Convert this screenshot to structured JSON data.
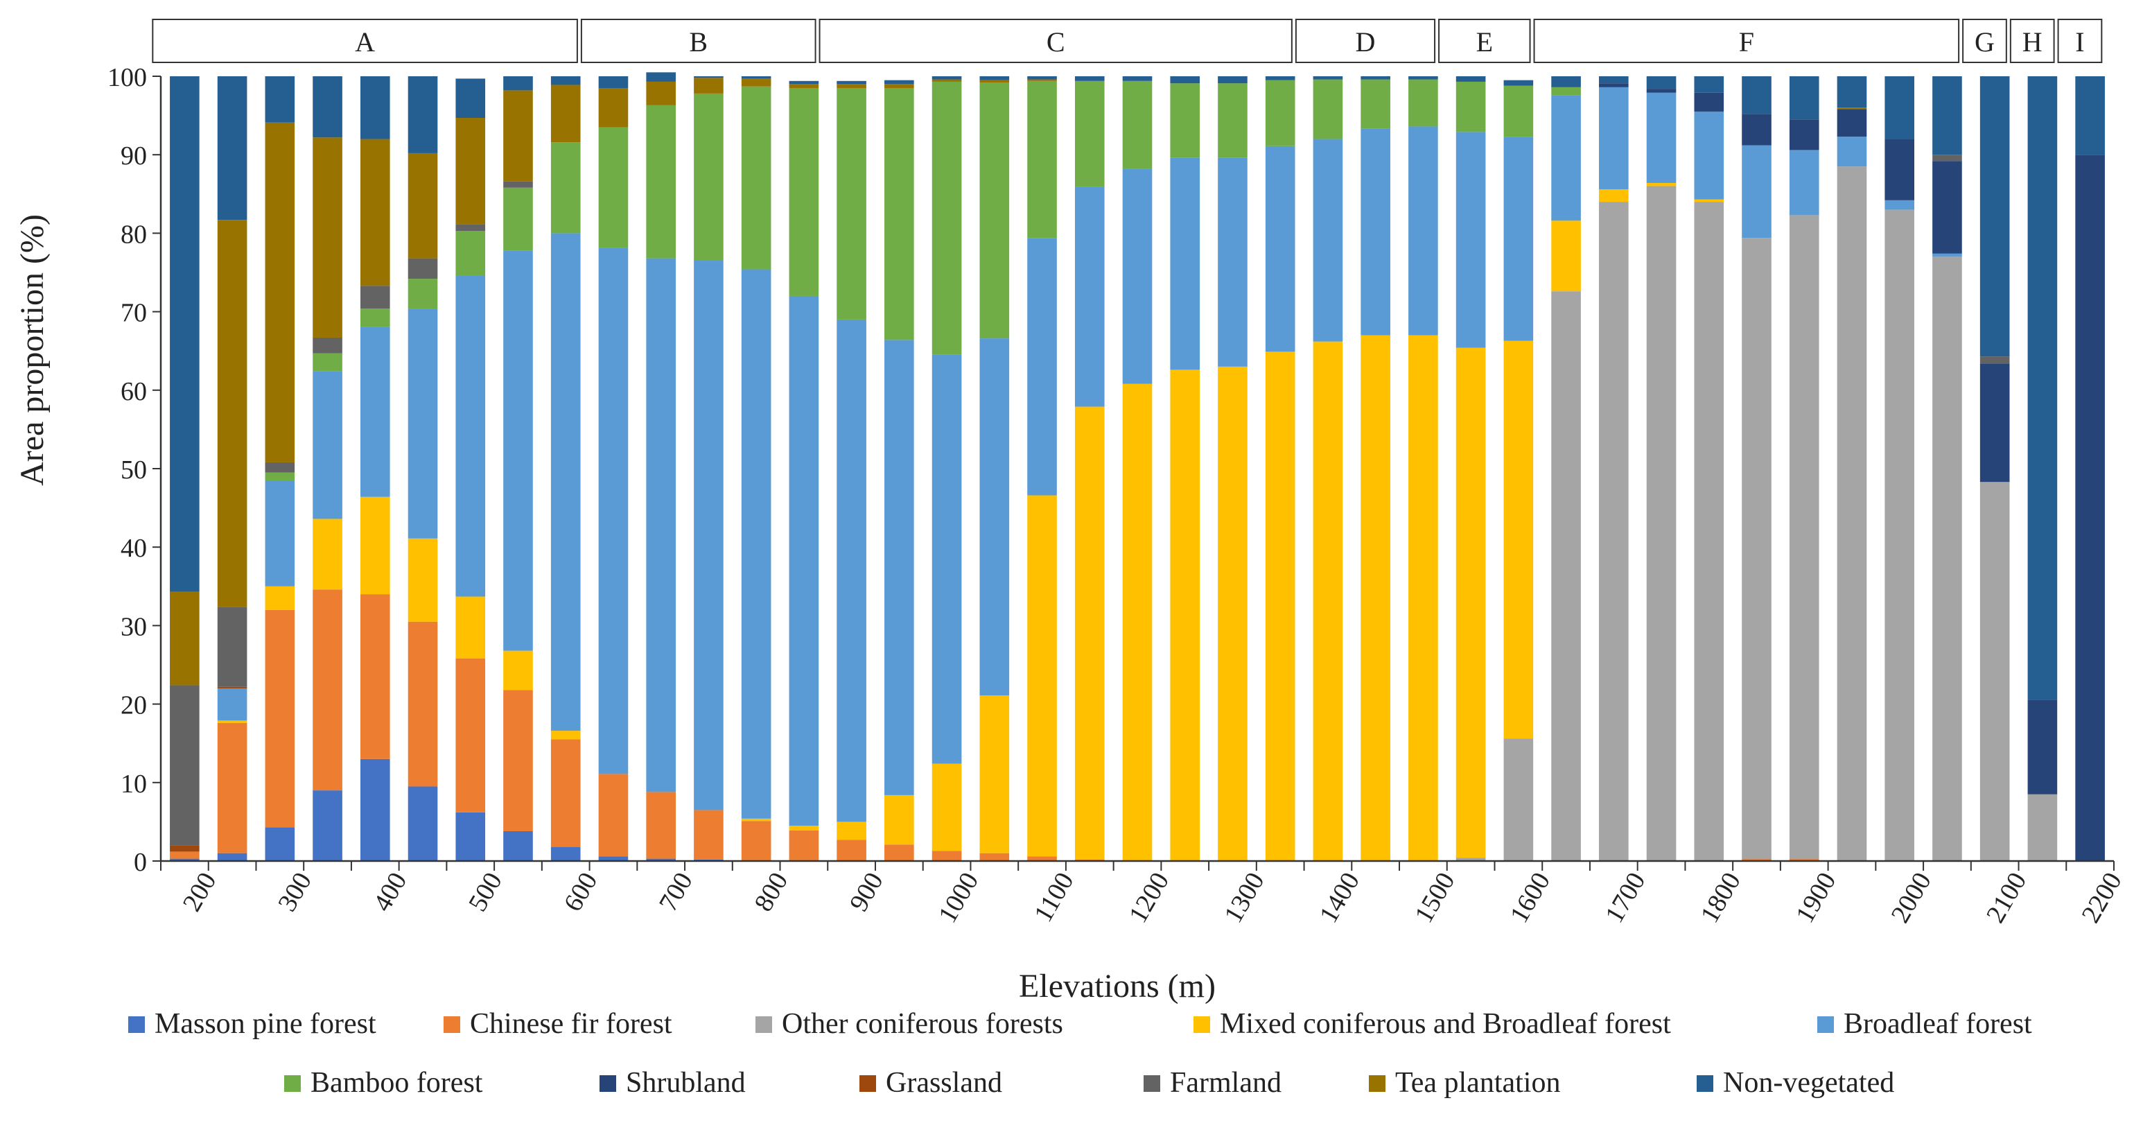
{
  "chart_data": {
    "type": "stacked-bar",
    "xlabel": "Elevations (m)",
    "ylabel": "Area proportion (%)",
    "ylim": [
      0,
      100
    ],
    "yticks": [
      0,
      10,
      20,
      30,
      40,
      50,
      60,
      70,
      80,
      90,
      100
    ],
    "xtick_labels": [
      "200",
      "300",
      "400",
      "500",
      "600",
      "700",
      "800",
      "900",
      "1000",
      "1100",
      "1200",
      "1300",
      "1400",
      "1500",
      "1600",
      "1700",
      "1800",
      "1900",
      "2000",
      "2100",
      "2200"
    ],
    "x_bins": [
      "150-200",
      "200-250",
      "250-300",
      "300-350",
      "350-400",
      "400-450",
      "450-500",
      "500-550",
      "550-600",
      "600-650",
      "650-700",
      "700-750",
      "750-800",
      "800-850",
      "850-900",
      "900-950",
      "950-1000",
      "1000-1050",
      "1050-1100",
      "1100-1150",
      "1150-1200",
      "1200-1250",
      "1250-1300",
      "1300-1350",
      "1350-1400",
      "1400-1450",
      "1450-1500",
      "1500-1550",
      "1550-1600",
      "1600-1650",
      "1650-1700",
      "1700-1750",
      "1750-1800",
      "1800-1850",
      "1850-1900",
      "1900-1950",
      "1950-2000",
      "2000-2050",
      "2050-2100",
      "2100-2150",
      "2150-2200"
    ],
    "zones": [
      {
        "label": "A",
        "start": 0,
        "end": 8
      },
      {
        "label": "B",
        "start": 9,
        "end": 13
      },
      {
        "label": "C",
        "start": 14,
        "end": 23
      },
      {
        "label": "D",
        "start": 24,
        "end": 26
      },
      {
        "label": "E",
        "start": 27,
        "end": 28
      },
      {
        "label": "F",
        "start": 29,
        "end": 37
      },
      {
        "label": "G",
        "start": 38,
        "end": 38
      },
      {
        "label": "H",
        "start": 39,
        "end": 39
      },
      {
        "label": "I",
        "start": 40,
        "end": 40
      }
    ],
    "series": [
      {
        "name": "Masson pine forest",
        "color": "#4472c4",
        "values": [
          0.3,
          1,
          4.3,
          9,
          13,
          9.5,
          6.2,
          3.8,
          1.8,
          0.6,
          0.3,
          0.2,
          0.1,
          0.1,
          0,
          0,
          0,
          0,
          0,
          0,
          0,
          0,
          0,
          0,
          0,
          0,
          0,
          0,
          0,
          0,
          0,
          0,
          0,
          0,
          0,
          0,
          0,
          0,
          0,
          0,
          0
        ]
      },
      {
        "name": "Chinese fir forest",
        "color": "#ed7d31",
        "values": [
          0.9,
          16.6,
          27.7,
          25.6,
          21,
          21,
          19.6,
          18,
          13.7,
          10.5,
          8.5,
          6.3,
          5,
          3.8,
          2.7,
          2.1,
          1.3,
          1,
          0.6,
          0.2,
          0,
          0,
          0,
          0,
          0,
          0,
          0,
          0,
          0,
          0,
          0,
          0,
          0,
          0.3,
          0.3,
          0,
          0,
          0,
          0,
          0,
          0
        ]
      },
      {
        "name": "Other coniferous forests",
        "color": "#a5a5a5",
        "values": [
          0,
          0,
          0,
          0,
          0,
          0,
          0,
          0,
          0,
          0,
          0,
          0,
          0,
          0,
          0,
          0,
          0,
          0,
          0,
          0,
          0,
          0,
          0,
          0,
          0,
          0,
          0,
          0.4,
          15.6,
          72.6,
          84,
          86,
          84,
          79.1,
          82,
          88.5,
          83,
          77,
          48.3,
          8.5,
          0
        ]
      },
      {
        "name": "Mixed coniferous and Broadleaf forest",
        "color": "#ffc000",
        "values": [
          0,
          0.3,
          3,
          9,
          12.4,
          10.6,
          7.9,
          5,
          1.1,
          0,
          0,
          0,
          0.3,
          0.6,
          2.3,
          6.3,
          11.1,
          20.1,
          46,
          57.7,
          60.8,
          62.6,
          63,
          64.9,
          66.2,
          67,
          67,
          65,
          50.7,
          9,
          1.6,
          0.4,
          0.3,
          0,
          0,
          0,
          0,
          0,
          0,
          0,
          0
        ]
      },
      {
        "name": "Broadleaf forest",
        "color": "#5b9bd5",
        "values": [
          0,
          4.1,
          13.5,
          18.8,
          21.7,
          29.3,
          40.9,
          51,
          63.4,
          67,
          68,
          70,
          70,
          67.5,
          64,
          58,
          52.1,
          45.5,
          32.8,
          28,
          27.4,
          27,
          26.6,
          26.2,
          25.8,
          26.3,
          26.6,
          27.5,
          26,
          16,
          13,
          11.5,
          11.2,
          11.8,
          8.3,
          3.8,
          1.2,
          0.4,
          0,
          0,
          0
        ]
      },
      {
        "name": "Bamboo forest",
        "color": "#70ad47",
        "values": [
          0,
          0,
          1,
          2.3,
          2.3,
          3.8,
          5.7,
          8,
          11.6,
          15.4,
          19.5,
          21.3,
          23.3,
          26.5,
          29.5,
          32.1,
          34.8,
          32.6,
          20,
          13.5,
          11.2,
          9.5,
          9.5,
          8.4,
          7.6,
          6.3,
          6,
          6.4,
          6.5,
          1,
          0,
          0,
          0,
          0,
          0,
          0,
          0,
          0,
          0,
          0,
          0
        ]
      },
      {
        "name": "Shrubland",
        "color": "#264478",
        "values": [
          0,
          0,
          0,
          0,
          0,
          0,
          0,
          0,
          0,
          0,
          0,
          0,
          0,
          0,
          0,
          0,
          0,
          0,
          0,
          0,
          0,
          0,
          0,
          0,
          0,
          0,
          0,
          0,
          0,
          0,
          0.5,
          0.5,
          2.4,
          4,
          3.9,
          3.5,
          7.8,
          11.8,
          15.1,
          12,
          90
        ]
      },
      {
        "name": "Grassland",
        "color": "#9e480e",
        "values": [
          0.8,
          0.2,
          0,
          0,
          0,
          0,
          0,
          0,
          0,
          0,
          0,
          0,
          0,
          0,
          0,
          0,
          0,
          0,
          0,
          0,
          0,
          0,
          0,
          0,
          0,
          0,
          0,
          0,
          0,
          0,
          0,
          0,
          0,
          0,
          0,
          0,
          0,
          0,
          0,
          0,
          0
        ]
      },
      {
        "name": "Farmland",
        "color": "#636363",
        "values": [
          20.4,
          10.2,
          1.3,
          2,
          2.9,
          2.6,
          0.8,
          0.8,
          0,
          0,
          0,
          0,
          0,
          0,
          0,
          0,
          0,
          0,
          0,
          0,
          0,
          0,
          0,
          0,
          0,
          0,
          0,
          0,
          0,
          0,
          0,
          0,
          0,
          0,
          0,
          0,
          0,
          0.8,
          0.9,
          0,
          0
        ]
      },
      {
        "name": "Tea plantation",
        "color": "#997300",
        "values": [
          11.9,
          49.3,
          43.3,
          25.5,
          18.7,
          13.4,
          13.6,
          11.6,
          7.3,
          5,
          3,
          2,
          1,
          0.5,
          0.5,
          0.5,
          0.3,
          0.3,
          0.2,
          0,
          0,
          0,
          0,
          0,
          0,
          0,
          0,
          0,
          0,
          0,
          0,
          0,
          0,
          0,
          0,
          0.2,
          0,
          0,
          0,
          0,
          0
        ]
      },
      {
        "name": "Non-vegetated",
        "color": "#255e91",
        "values": [
          65.7,
          18.3,
          5.9,
          7.8,
          8,
          9.8,
          5,
          1.8,
          1.1,
          1.5,
          1.2,
          0.2,
          0.3,
          0.4,
          0.4,
          0.5,
          0.4,
          0.5,
          0.4,
          0.6,
          0.6,
          0.9,
          0.9,
          0.5,
          0.4,
          0.4,
          0.4,
          0.7,
          0.7,
          1.4,
          0.9,
          1.6,
          2.1,
          4.8,
          5.5,
          4,
          8,
          10,
          35.7,
          79.5,
          10
        ]
      }
    ]
  }
}
